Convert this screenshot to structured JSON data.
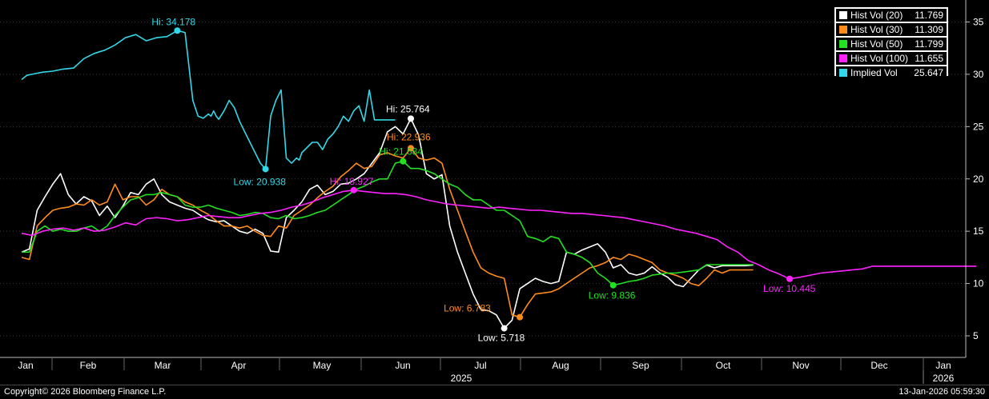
{
  "chart_data": {
    "type": "line",
    "ylim": [
      3.5,
      37
    ],
    "yticks": [
      5,
      10,
      15,
      20,
      25,
      30,
      35
    ],
    "x_axis": {
      "months": [
        "Jan",
        "Feb",
        "Mar",
        "Apr",
        "May",
        "Jun",
        "Jul",
        "Aug",
        "Sep",
        "Oct",
        "Nov",
        "Dec",
        "Jan"
      ],
      "years": [
        "2025",
        "2026"
      ]
    },
    "series": [
      {
        "name": "Hist Vol (20)",
        "color": "#ffffff",
        "last": "11.769",
        "x": [
          0,
          3,
          6,
          9,
          12,
          15,
          18,
          21,
          24,
          27,
          30,
          33,
          36,
          39,
          42,
          45,
          48,
          51,
          54,
          57,
          60,
          63,
          66,
          69,
          72,
          75,
          78,
          81,
          84,
          87,
          90,
          93,
          96,
          99,
          102,
          105,
          108,
          111,
          114,
          117,
          120,
          123,
          126,
          129,
          132,
          135,
          138,
          141,
          144,
          147,
          150,
          153,
          156,
          159,
          162,
          165,
          168,
          171,
          174,
          177,
          180,
          183,
          186,
          189,
          192,
          195,
          198,
          201,
          204,
          207,
          210,
          213,
          216,
          219,
          222,
          225,
          228,
          231,
          234,
          237,
          240,
          243,
          246,
          249,
          252,
          255,
          258,
          261,
          264,
          267,
          270,
          273,
          276,
          279,
          282
        ],
        "values": [
          13.0,
          13.3,
          17.0,
          18.3,
          19.5,
          20.5,
          18.5,
          17.6,
          18.3,
          17.9,
          16.5,
          17.4,
          16.3,
          17.4,
          18.7,
          18.5,
          19.5,
          20.0,
          18.5,
          17.8,
          17.5,
          17.2,
          17.0,
          16.5,
          16.1,
          15.9,
          16.0,
          15.5,
          15.0,
          14.8,
          15.2,
          14.8,
          13.1,
          13.0,
          16.3,
          17.0,
          17.8,
          19.0,
          19.4,
          18.5,
          18.8,
          19.5,
          19.6,
          20.0,
          20.5,
          21.5,
          22.5,
          24.5,
          25.0,
          24.3,
          25.764,
          24.2,
          20.5,
          20.0,
          20.4,
          15.5,
          13.0,
          11.0,
          9.0,
          7.5,
          7.4,
          7.0,
          5.718,
          6.5,
          9.5,
          10.0,
          10.5,
          10.2,
          10.0,
          10.2,
          13.0,
          12.8,
          13.2,
          13.5,
          13.8,
          13.0,
          11.5,
          11.8,
          11.0,
          10.8,
          11.0,
          11.6,
          11.0,
          10.6,
          9.9,
          9.7,
          10.5,
          11.3,
          11.769,
          11.5,
          11.7,
          11.7,
          11.7,
          11.7,
          11.769
        ]
      },
      {
        "name": "Hist Vol (30)",
        "color": "#ff8c1a",
        "last": "11.309",
        "x": [
          0,
          3,
          6,
          9,
          12,
          15,
          18,
          21,
          24,
          27,
          30,
          33,
          36,
          39,
          42,
          45,
          48,
          51,
          54,
          57,
          60,
          63,
          66,
          69,
          72,
          75,
          78,
          81,
          84,
          87,
          90,
          93,
          96,
          99,
          102,
          105,
          108,
          111,
          114,
          117,
          120,
          123,
          126,
          129,
          132,
          135,
          138,
          141,
          144,
          147,
          150,
          153,
          156,
          159,
          162,
          165,
          168,
          171,
          174,
          177,
          180,
          183,
          186,
          189,
          192,
          195,
          198,
          201,
          204,
          207,
          210,
          213,
          216,
          219,
          222,
          225,
          228,
          231,
          234,
          237,
          240,
          243,
          246,
          249,
          252,
          255,
          258,
          261,
          264,
          267,
          270,
          273,
          276,
          279,
          282
        ],
        "values": [
          12.5,
          12.3,
          15.5,
          16.3,
          17.0,
          17.2,
          17.3,
          17.6,
          17.5,
          18.0,
          17.5,
          17.8,
          19.5,
          18.0,
          18.3,
          18.3,
          17.5,
          18.0,
          19.0,
          18.5,
          18.3,
          17.8,
          17.5,
          17.0,
          16.6,
          16.0,
          15.5,
          15.5,
          15.3,
          15.5,
          15.0,
          14.6,
          14.5,
          15.5,
          15.3,
          16.5,
          17.0,
          17.5,
          18.2,
          18.8,
          19.3,
          20.2,
          20.8,
          21.5,
          21.0,
          21.2,
          22.3,
          22.5,
          22.2,
          22.0,
          22.936,
          22.0,
          21.8,
          22.0,
          21.5,
          19.0,
          17.0,
          15.0,
          13.0,
          11.5,
          11.0,
          10.7,
          10.5,
          7.0,
          6.783,
          8.0,
          9.0,
          9.1,
          9.2,
          9.5,
          10.0,
          10.5,
          11.0,
          11.5,
          11.7,
          12.0,
          12.5,
          12.3,
          12.8,
          12.6,
          12.3,
          12.0,
          11.3,
          11.0,
          10.8,
          10.5,
          10.0,
          9.8,
          10.5,
          11.309,
          11.0,
          11.3,
          11.3,
          11.3,
          11.309
        ]
      },
      {
        "name": "Hist Vol (50)",
        "color": "#22e022",
        "last": "11.799",
        "x": [
          0,
          3,
          6,
          9,
          12,
          15,
          18,
          21,
          24,
          27,
          30,
          33,
          36,
          39,
          42,
          45,
          48,
          51,
          54,
          57,
          60,
          63,
          66,
          69,
          72,
          75,
          78,
          81,
          84,
          87,
          90,
          93,
          96,
          99,
          102,
          105,
          108,
          111,
          114,
          117,
          120,
          123,
          126,
          129,
          132,
          135,
          138,
          141,
          144,
          147,
          150,
          153,
          156,
          159,
          162,
          165,
          168,
          171,
          174,
          177,
          180,
          183,
          186,
          189,
          192,
          195,
          198,
          201,
          204,
          207,
          210,
          213,
          216,
          219,
          222,
          225,
          228,
          231,
          234,
          237,
          240,
          243,
          246,
          249,
          252,
          255,
          258,
          261,
          264,
          267,
          270,
          273,
          276,
          279,
          282
        ],
        "values": [
          13.0,
          13.0,
          15.0,
          15.5,
          15.0,
          15.2,
          15.0,
          15.0,
          15.3,
          15.5,
          15.0,
          15.5,
          16.5,
          17.3,
          18.0,
          18.2,
          18.5,
          18.5,
          18.7,
          18.5,
          18.3,
          17.5,
          17.3,
          17.3,
          17.5,
          17.2,
          17.0,
          16.8,
          16.5,
          16.6,
          16.8,
          16.7,
          16.3,
          16.2,
          16.5,
          16.2,
          16.3,
          16.5,
          16.8,
          17.0,
          17.5,
          18.0,
          18.5,
          19.0,
          19.3,
          19.7,
          20.0,
          20.0,
          21.5,
          21.684,
          21.0,
          21.0,
          20.8,
          20.5,
          20.0,
          19.5,
          19.2,
          18.5,
          18.0,
          18.0,
          17.5,
          17.0,
          17.0,
          16.5,
          16.0,
          14.5,
          14.3,
          14.0,
          14.5,
          14.3,
          13.0,
          12.8,
          12.5,
          12.0,
          11.0,
          10.5,
          9.836,
          10.0,
          10.2,
          10.3,
          10.5,
          10.8,
          10.9,
          11.0,
          11.0,
          11.1,
          11.2,
          11.3,
          11.8,
          11.799,
          11.8,
          11.8,
          11.8,
          11.8,
          11.799
        ]
      },
      {
        "name": "Hist Vol (100)",
        "color": "#ff22ff",
        "last": "11.655",
        "x": [
          0,
          4,
          8,
          12,
          16,
          20,
          24,
          28,
          32,
          36,
          40,
          44,
          48,
          52,
          56,
          60,
          64,
          68,
          72,
          76,
          80,
          84,
          88,
          92,
          96,
          100,
          104,
          108,
          112,
          116,
          120,
          124,
          128,
          132,
          136,
          140,
          144,
          148,
          152,
          156,
          160,
          164,
          168,
          172,
          176,
          180,
          184,
          188,
          192,
          196,
          200,
          204,
          208,
          212,
          216,
          220,
          224,
          228,
          232,
          236,
          240,
          244,
          248,
          252,
          256,
          260,
          264,
          268,
          272,
          276,
          280,
          284,
          288,
          292,
          296,
          300,
          304,
          308,
          312,
          316,
          320,
          324,
          328,
          332,
          336,
          340,
          344,
          348,
          352,
          356,
          360,
          364,
          368
        ],
        "values": [
          14.8,
          14.6,
          15.0,
          15.2,
          15.3,
          15.1,
          15.3,
          15.0,
          15.1,
          15.4,
          15.8,
          15.6,
          16.2,
          16.3,
          16.2,
          16.0,
          16.1,
          16.3,
          16.5,
          16.4,
          16.3,
          16.3,
          16.5,
          16.7,
          16.8,
          17.0,
          17.3,
          17.5,
          17.8,
          18.2,
          18.5,
          18.8,
          18.927,
          18.8,
          18.7,
          18.6,
          18.6,
          18.5,
          18.3,
          18.0,
          17.8,
          17.6,
          17.5,
          17.4,
          17.3,
          17.2,
          17.3,
          17.2,
          17.1,
          17.0,
          17.0,
          16.9,
          16.8,
          16.7,
          16.7,
          16.6,
          16.5,
          16.4,
          16.3,
          16.1,
          15.9,
          15.7,
          15.5,
          15.2,
          15.0,
          14.8,
          14.5,
          14.2,
          13.5,
          13.0,
          12.2,
          11.8,
          11.3,
          10.9,
          10.445,
          10.6,
          10.8,
          11.0,
          11.1,
          11.2,
          11.3,
          11.4,
          11.655,
          11.655,
          11.655,
          11.655,
          11.655,
          11.655,
          11.655,
          11.655,
          11.655,
          11.655,
          11.655
        ]
      },
      {
        "name": "Implied Vol",
        "color": "#33d8e8",
        "last": "25.647",
        "x": [
          0,
          2,
          4,
          8,
          12,
          16,
          20,
          24,
          28,
          32,
          36,
          40,
          44,
          48,
          52,
          56,
          60,
          63,
          66,
          68,
          70,
          72,
          73,
          74,
          75,
          76,
          78,
          80,
          82,
          84,
          86,
          88,
          90,
          92,
          94,
          96,
          98,
          100,
          102,
          104,
          106,
          107,
          108,
          110,
          112,
          114,
          116,
          118,
          120,
          122,
          124,
          126,
          128,
          130,
          132,
          134,
          136,
          138,
          140,
          142,
          143,
          144
        ],
        "values": [
          29.5,
          29.9,
          30.0,
          30.2,
          30.3,
          30.5,
          30.6,
          31.5,
          32.0,
          32.3,
          32.8,
          33.5,
          33.8,
          33.2,
          33.5,
          33.6,
          34.178,
          34.0,
          27.5,
          26.0,
          25.8,
          26.2,
          26.0,
          26.5,
          26.0,
          25.7,
          26.5,
          27.5,
          26.8,
          25.5,
          24.5,
          23.5,
          22.5,
          21.5,
          20.938,
          26.0,
          27.5,
          28.5,
          22.0,
          21.5,
          22.0,
          21.8,
          22.5,
          23.0,
          23.5,
          23.5,
          22.8,
          23.8,
          24.3,
          25.0,
          26.0,
          25.5,
          26.5,
          27.0,
          25.5,
          28.5,
          25.647,
          25.647,
          25.647,
          25.647,
          25.647,
          25.647
        ]
      }
    ],
    "annotations": [
      {
        "series": 4,
        "text": "Hi: 34.178",
        "value": 34.178
      },
      {
        "series": 4,
        "text": "Low: 20.938",
        "value": 20.938
      },
      {
        "series": 0,
        "text": "Hi: 25.764",
        "value": 25.764
      },
      {
        "series": 0,
        "text": "Low: 5.718",
        "value": 5.718
      },
      {
        "series": 1,
        "text": "Hi: 22.936",
        "value": 22.936
      },
      {
        "series": 1,
        "text": "Low: 6.783",
        "value": 6.783
      },
      {
        "series": 2,
        "text": "Hi: 21.684",
        "value": 21.684
      },
      {
        "series": 2,
        "text": "Low: 9.836",
        "value": 9.836
      },
      {
        "series": 3,
        "text": "Hi: 18.927",
        "value": 18.927
      },
      {
        "series": 3,
        "text": "Low: 10.445",
        "value": 10.445
      }
    ]
  },
  "legend": {
    "items": [
      {
        "name": "Hist Vol (20)",
        "value": "11.769",
        "color": "#ffffff"
      },
      {
        "name": "Hist Vol (30)",
        "value": "11.309",
        "color": "#ff8c1a"
      },
      {
        "name": "Hist Vol (50)",
        "value": "11.799",
        "color": "#22e022"
      },
      {
        "name": "Hist Vol (100)",
        "value": "11.655",
        "color": "#ff22ff"
      },
      {
        "name": "Implied Vol",
        "value": "25.647",
        "color": "#33d8e8"
      }
    ]
  },
  "footer": {
    "copyright": "Copyright© 2026 Bloomberg Finance L.P.",
    "timestamp": "13-Jan-2026 05:59:30"
  }
}
